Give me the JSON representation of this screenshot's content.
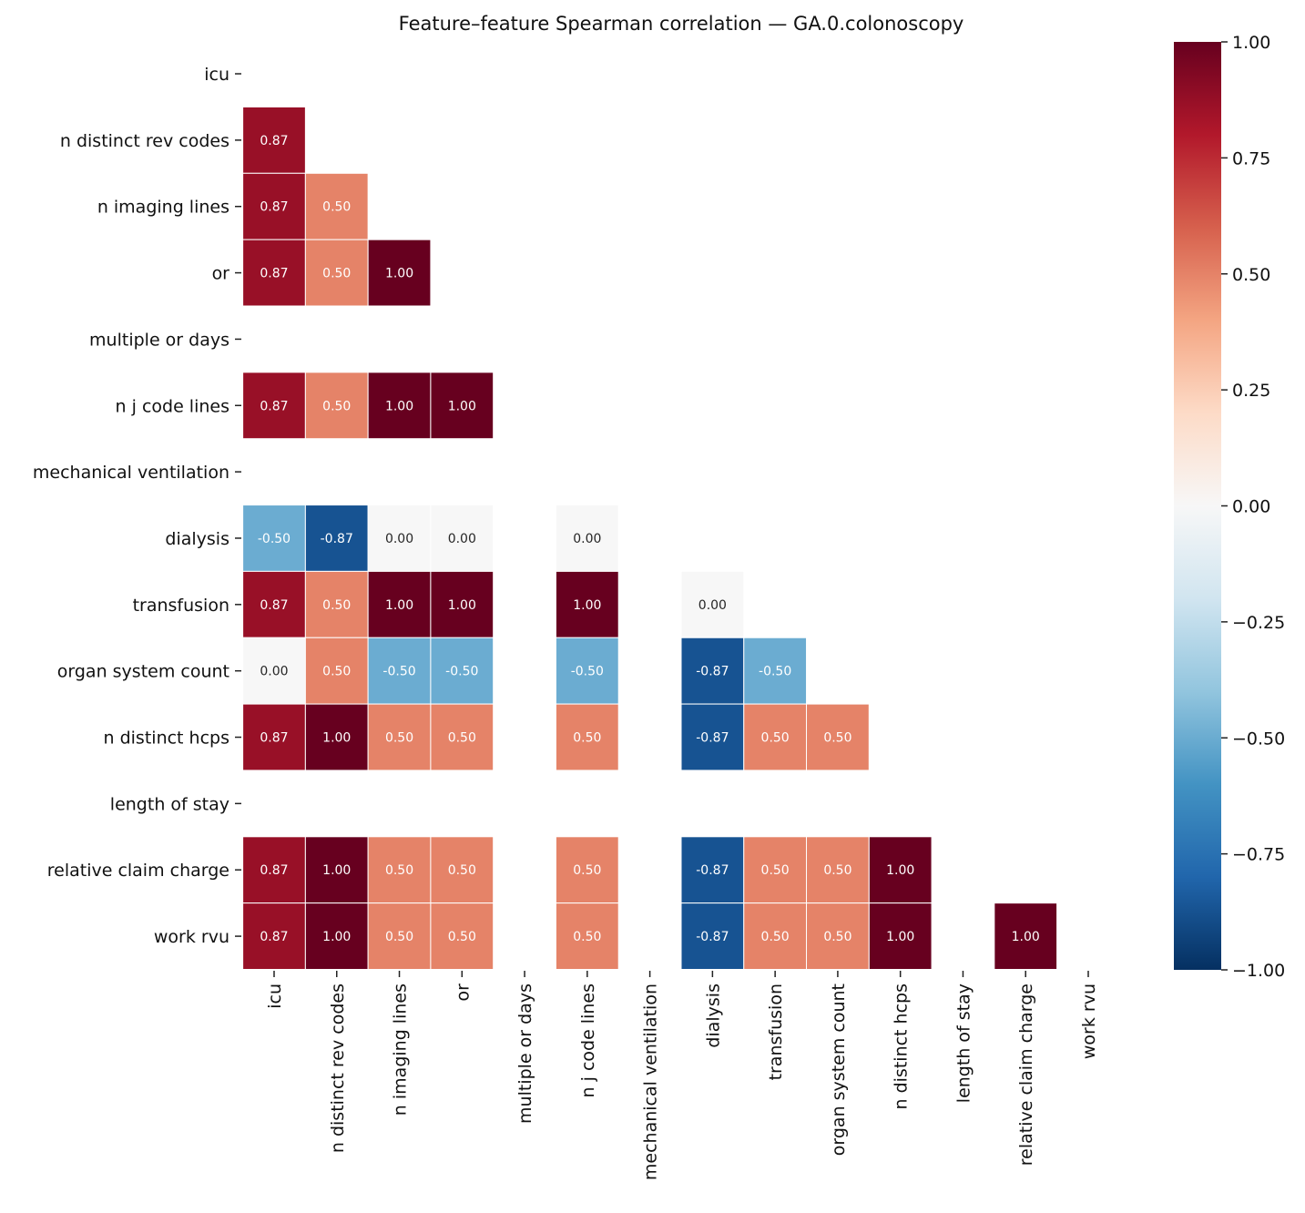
{
  "chart_data": {
    "type": "heatmap",
    "title": "Feature–feature Spearman correlation — GA.0.colonoscopy",
    "labels": [
      "icu",
      "n distinct rev codes",
      "n imaging lines",
      "or",
      "multiple or days",
      "n j code lines",
      "mechanical ventilation",
      "dialysis",
      "transfusion",
      "organ system count",
      "n distinct hcps",
      "length of stay",
      "relative claim charge",
      "work rvu"
    ],
    "mask": "upper triangle incl. diagonal",
    "values": [
      [],
      [
        0.87
      ],
      [
        0.87,
        0.5
      ],
      [
        0.87,
        0.5,
        1.0
      ],
      [
        null,
        null,
        null,
        null
      ],
      [
        0.87,
        0.5,
        1.0,
        1.0,
        null
      ],
      [
        null,
        null,
        null,
        null,
        null,
        null
      ],
      [
        -0.5,
        -0.87,
        0.0,
        0.0,
        null,
        0.0,
        null
      ],
      [
        0.87,
        0.5,
        1.0,
        1.0,
        null,
        1.0,
        null,
        0.0
      ],
      [
        0.0,
        0.5,
        -0.5,
        -0.5,
        null,
        -0.5,
        null,
        -0.87,
        -0.5
      ],
      [
        0.87,
        1.0,
        0.5,
        0.5,
        null,
        0.5,
        null,
        -0.87,
        0.5,
        0.5
      ],
      [
        null,
        null,
        null,
        null,
        null,
        null,
        null,
        null,
        null,
        null,
        null
      ],
      [
        0.87,
        1.0,
        0.5,
        0.5,
        null,
        0.5,
        null,
        -0.87,
        0.5,
        0.5,
        1.0,
        null
      ],
      [
        0.87,
        1.0,
        0.5,
        0.5,
        null,
        0.5,
        null,
        -0.87,
        0.5,
        0.5,
        1.0,
        null,
        1.0
      ]
    ],
    "colormap": "RdBu_r",
    "colormap_stops": [
      "#053061",
      "#2166ac",
      "#4393c3",
      "#92c5de",
      "#d1e5f0",
      "#f7f7f7",
      "#fddbc7",
      "#f4a582",
      "#d6604d",
      "#b2182b",
      "#67001f"
    ],
    "vmin": -1.0,
    "vmax": 1.0,
    "colorbar_ticks": [
      "−1.00",
      "−0.75",
      "−0.50",
      "−0.25",
      "0.00",
      "0.25",
      "0.50",
      "0.75",
      "1.00"
    ],
    "annotation_format": "0.00"
  }
}
